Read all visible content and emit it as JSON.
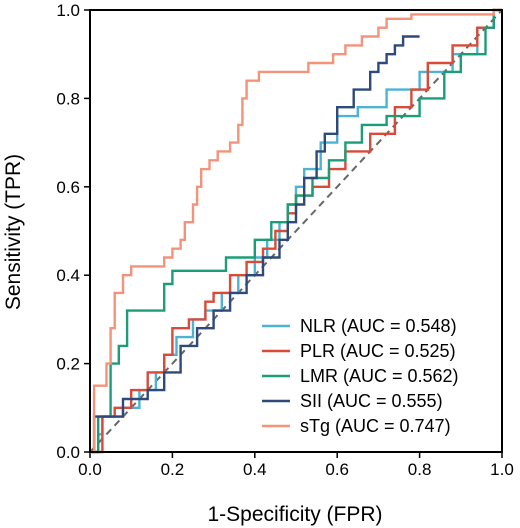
{
  "chart_data": {
    "type": "line",
    "xlabel": "1-Specificity (FPR)",
    "ylabel": "Sensitivity (TPR)",
    "xlim": [
      0,
      1
    ],
    "ylim": [
      0,
      1
    ],
    "xticks": [
      "0.0",
      "0.2",
      "0.4",
      "0.6",
      "0.8",
      "1.0"
    ],
    "yticks": [
      "0.0",
      "0.2",
      "0.4",
      "0.6",
      "0.8",
      "1.0"
    ],
    "grid": false,
    "legend_position": "bottom-right",
    "reference_line": {
      "style": "dashed",
      "color": "#666666",
      "points": [
        [
          0,
          0
        ],
        [
          1,
          1
        ]
      ]
    },
    "series": [
      {
        "name": "NLR (AUC = 0.548)",
        "color": "#4EB3D3",
        "points": [
          [
            0,
            0
          ],
          [
            0.02,
            0
          ],
          [
            0.02,
            0.04
          ],
          [
            0.03,
            0.04
          ],
          [
            0.03,
            0.08
          ],
          [
            0.08,
            0.08
          ],
          [
            0.08,
            0.1
          ],
          [
            0.12,
            0.1
          ],
          [
            0.12,
            0.14
          ],
          [
            0.16,
            0.14
          ],
          [
            0.16,
            0.18
          ],
          [
            0.18,
            0.18
          ],
          [
            0.18,
            0.22
          ],
          [
            0.21,
            0.22
          ],
          [
            0.21,
            0.26
          ],
          [
            0.25,
            0.26
          ],
          [
            0.25,
            0.3
          ],
          [
            0.28,
            0.3
          ],
          [
            0.28,
            0.32
          ],
          [
            0.32,
            0.32
          ],
          [
            0.32,
            0.36
          ],
          [
            0.36,
            0.36
          ],
          [
            0.36,
            0.4
          ],
          [
            0.4,
            0.4
          ],
          [
            0.4,
            0.44
          ],
          [
            0.43,
            0.44
          ],
          [
            0.43,
            0.48
          ],
          [
            0.46,
            0.48
          ],
          [
            0.46,
            0.52
          ],
          [
            0.48,
            0.52
          ],
          [
            0.48,
            0.56
          ],
          [
            0.5,
            0.56
          ],
          [
            0.5,
            0.6
          ],
          [
            0.52,
            0.6
          ],
          [
            0.52,
            0.64
          ],
          [
            0.56,
            0.64
          ],
          [
            0.56,
            0.7
          ],
          [
            0.6,
            0.7
          ],
          [
            0.6,
            0.76
          ],
          [
            0.65,
            0.76
          ],
          [
            0.65,
            0.78
          ],
          [
            0.72,
            0.78
          ],
          [
            0.72,
            0.82
          ],
          [
            0.8,
            0.82
          ],
          [
            0.8,
            0.86
          ],
          [
            0.88,
            0.86
          ],
          [
            0.88,
            0.9
          ],
          [
            0.94,
            0.9
          ],
          [
            0.94,
            0.96
          ],
          [
            0.98,
            0.96
          ],
          [
            0.98,
            1.0
          ],
          [
            1.0,
            1.0
          ]
        ]
      },
      {
        "name": "PLR (AUC = 0.525)",
        "color": "#D94A38",
        "points": [
          [
            0,
            0
          ],
          [
            0.03,
            0
          ],
          [
            0.03,
            0.08
          ],
          [
            0.06,
            0.08
          ],
          [
            0.06,
            0.1
          ],
          [
            0.1,
            0.1
          ],
          [
            0.1,
            0.14
          ],
          [
            0.14,
            0.14
          ],
          [
            0.14,
            0.18
          ],
          [
            0.18,
            0.18
          ],
          [
            0.18,
            0.22
          ],
          [
            0.2,
            0.22
          ],
          [
            0.2,
            0.28
          ],
          [
            0.24,
            0.28
          ],
          [
            0.24,
            0.3
          ],
          [
            0.28,
            0.3
          ],
          [
            0.28,
            0.34
          ],
          [
            0.3,
            0.34
          ],
          [
            0.3,
            0.36
          ],
          [
            0.34,
            0.36
          ],
          [
            0.34,
            0.4
          ],
          [
            0.38,
            0.4
          ],
          [
            0.38,
            0.43
          ],
          [
            0.42,
            0.43
          ],
          [
            0.42,
            0.46
          ],
          [
            0.45,
            0.46
          ],
          [
            0.45,
            0.5
          ],
          [
            0.48,
            0.5
          ],
          [
            0.48,
            0.54
          ],
          [
            0.5,
            0.54
          ],
          [
            0.5,
            0.58
          ],
          [
            0.54,
            0.58
          ],
          [
            0.54,
            0.6
          ],
          [
            0.58,
            0.6
          ],
          [
            0.58,
            0.64
          ],
          [
            0.62,
            0.64
          ],
          [
            0.62,
            0.68
          ],
          [
            0.68,
            0.68
          ],
          [
            0.68,
            0.72
          ],
          [
            0.74,
            0.72
          ],
          [
            0.74,
            0.78
          ],
          [
            0.78,
            0.78
          ],
          [
            0.78,
            0.82
          ],
          [
            0.82,
            0.82
          ],
          [
            0.82,
            0.88
          ],
          [
            0.88,
            0.88
          ],
          [
            0.88,
            0.92
          ],
          [
            0.94,
            0.92
          ],
          [
            0.94,
            0.96
          ],
          [
            0.98,
            0.96
          ],
          [
            0.98,
            1.0
          ],
          [
            1.0,
            1.0
          ]
        ]
      },
      {
        "name": "LMR (AUC = 0.562)",
        "color": "#1B9E77",
        "points": [
          [
            0,
            0
          ],
          [
            0.02,
            0
          ],
          [
            0.02,
            0.08
          ],
          [
            0.05,
            0.08
          ],
          [
            0.05,
            0.2
          ],
          [
            0.07,
            0.2
          ],
          [
            0.07,
            0.24
          ],
          [
            0.09,
            0.24
          ],
          [
            0.09,
            0.32
          ],
          [
            0.18,
            0.32
          ],
          [
            0.18,
            0.38
          ],
          [
            0.2,
            0.38
          ],
          [
            0.2,
            0.41
          ],
          [
            0.33,
            0.41
          ],
          [
            0.33,
            0.44
          ],
          [
            0.4,
            0.44
          ],
          [
            0.4,
            0.48
          ],
          [
            0.44,
            0.48
          ],
          [
            0.44,
            0.52
          ],
          [
            0.48,
            0.52
          ],
          [
            0.48,
            0.56
          ],
          [
            0.5,
            0.56
          ],
          [
            0.5,
            0.58
          ],
          [
            0.54,
            0.58
          ],
          [
            0.54,
            0.62
          ],
          [
            0.58,
            0.62
          ],
          [
            0.58,
            0.66
          ],
          [
            0.62,
            0.66
          ],
          [
            0.62,
            0.7
          ],
          [
            0.66,
            0.7
          ],
          [
            0.66,
            0.74
          ],
          [
            0.72,
            0.74
          ],
          [
            0.72,
            0.76
          ],
          [
            0.8,
            0.76
          ],
          [
            0.8,
            0.8
          ],
          [
            0.86,
            0.8
          ],
          [
            0.86,
            0.86
          ],
          [
            0.9,
            0.86
          ],
          [
            0.9,
            0.9
          ],
          [
            0.96,
            0.9
          ],
          [
            0.96,
            0.96
          ],
          [
            0.98,
            0.96
          ],
          [
            0.98,
            1.0
          ],
          [
            1.0,
            1.0
          ]
        ]
      },
      {
        "name": "SII (AUC = 0.555)",
        "color": "#2D4A7A",
        "points": [
          [
            0,
            0
          ],
          [
            0.01,
            0
          ],
          [
            0.01,
            0.08
          ],
          [
            0.08,
            0.08
          ],
          [
            0.08,
            0.12
          ],
          [
            0.14,
            0.12
          ],
          [
            0.14,
            0.14
          ],
          [
            0.18,
            0.14
          ],
          [
            0.18,
            0.18
          ],
          [
            0.22,
            0.18
          ],
          [
            0.22,
            0.24
          ],
          [
            0.26,
            0.24
          ],
          [
            0.26,
            0.28
          ],
          [
            0.3,
            0.28
          ],
          [
            0.3,
            0.32
          ],
          [
            0.34,
            0.32
          ],
          [
            0.34,
            0.36
          ],
          [
            0.38,
            0.36
          ],
          [
            0.38,
            0.4
          ],
          [
            0.42,
            0.4
          ],
          [
            0.42,
            0.44
          ],
          [
            0.46,
            0.44
          ],
          [
            0.46,
            0.48
          ],
          [
            0.48,
            0.48
          ],
          [
            0.48,
            0.52
          ],
          [
            0.5,
            0.52
          ],
          [
            0.5,
            0.56
          ],
          [
            0.52,
            0.56
          ],
          [
            0.52,
            0.62
          ],
          [
            0.55,
            0.62
          ],
          [
            0.55,
            0.68
          ],
          [
            0.57,
            0.68
          ],
          [
            0.57,
            0.72
          ],
          [
            0.6,
            0.72
          ],
          [
            0.6,
            0.78
          ],
          [
            0.64,
            0.78
          ],
          [
            0.64,
            0.82
          ],
          [
            0.68,
            0.82
          ],
          [
            0.68,
            0.86
          ],
          [
            0.7,
            0.86
          ],
          [
            0.7,
            0.88
          ],
          [
            0.72,
            0.88
          ],
          [
            0.72,
            0.9
          ],
          [
            0.74,
            0.9
          ],
          [
            0.74,
            0.92
          ],
          [
            0.76,
            0.92
          ],
          [
            0.76,
            0.94
          ],
          [
            0.8,
            0.94
          ]
        ]
      },
      {
        "name": "sTg (AUC = 0.747)",
        "color": "#F4937A",
        "points": [
          [
            0,
            0
          ],
          [
            0.01,
            0
          ],
          [
            0.01,
            0.15
          ],
          [
            0.04,
            0.15
          ],
          [
            0.04,
            0.2
          ],
          [
            0.05,
            0.2
          ],
          [
            0.05,
            0.28
          ],
          [
            0.06,
            0.28
          ],
          [
            0.06,
            0.36
          ],
          [
            0.08,
            0.36
          ],
          [
            0.08,
            0.4
          ],
          [
            0.1,
            0.4
          ],
          [
            0.1,
            0.42
          ],
          [
            0.18,
            0.42
          ],
          [
            0.18,
            0.44
          ],
          [
            0.2,
            0.44
          ],
          [
            0.2,
            0.46
          ],
          [
            0.22,
            0.46
          ],
          [
            0.22,
            0.48
          ],
          [
            0.23,
            0.48
          ],
          [
            0.23,
            0.52
          ],
          [
            0.25,
            0.52
          ],
          [
            0.25,
            0.56
          ],
          [
            0.26,
            0.56
          ],
          [
            0.26,
            0.6
          ],
          [
            0.27,
            0.6
          ],
          [
            0.27,
            0.64
          ],
          [
            0.29,
            0.64
          ],
          [
            0.29,
            0.66
          ],
          [
            0.31,
            0.66
          ],
          [
            0.31,
            0.68
          ],
          [
            0.34,
            0.68
          ],
          [
            0.34,
            0.7
          ],
          [
            0.36,
            0.7
          ],
          [
            0.36,
            0.74
          ],
          [
            0.37,
            0.74
          ],
          [
            0.37,
            0.8
          ],
          [
            0.38,
            0.8
          ],
          [
            0.38,
            0.84
          ],
          [
            0.41,
            0.84
          ],
          [
            0.41,
            0.86
          ],
          [
            0.53,
            0.86
          ],
          [
            0.53,
            0.88
          ],
          [
            0.59,
            0.88
          ],
          [
            0.59,
            0.9
          ],
          [
            0.62,
            0.9
          ],
          [
            0.62,
            0.92
          ],
          [
            0.66,
            0.92
          ],
          [
            0.66,
            0.94
          ],
          [
            0.7,
            0.94
          ],
          [
            0.7,
            0.96
          ],
          [
            0.72,
            0.96
          ],
          [
            0.72,
            0.98
          ],
          [
            0.78,
            0.98
          ],
          [
            0.78,
            0.99
          ],
          [
            0.98,
            0.99
          ],
          [
            0.98,
            1.0
          ],
          [
            1.0,
            1.0
          ]
        ]
      }
    ]
  }
}
